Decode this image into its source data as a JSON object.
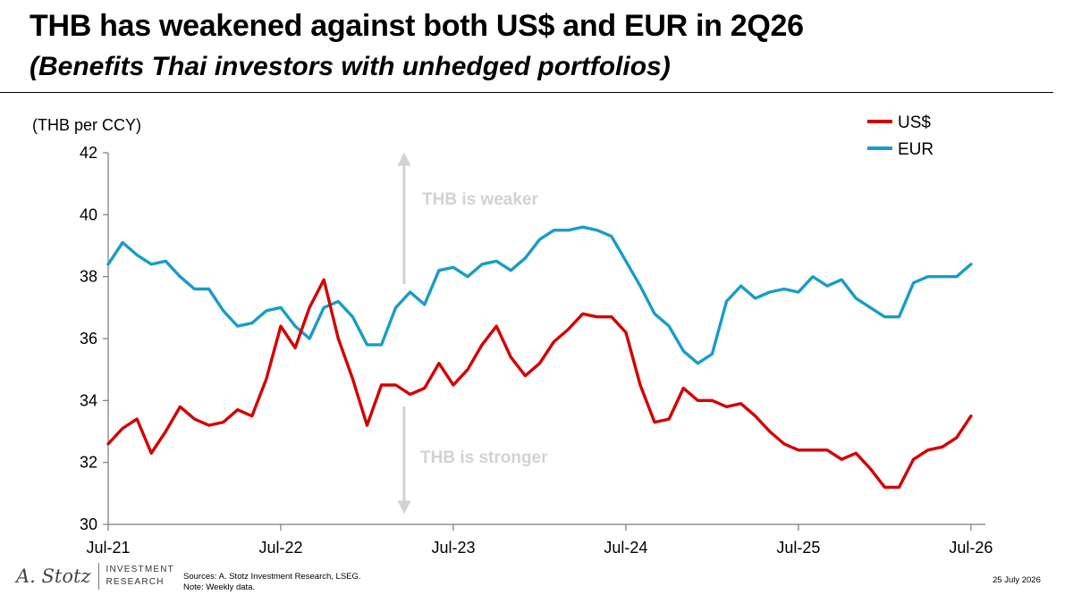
{
  "header": {
    "title": "THB has weakened against both US$ and EUR in 2Q26",
    "subtitle": "(Benefits Thai investors with unhedged portfolios)"
  },
  "chart_data": {
    "type": "line",
    "ylabel": "(THB per CCY)",
    "ylim": [
      30,
      42
    ],
    "yticks": [
      30,
      32,
      34,
      36,
      38,
      40,
      42
    ],
    "xlim": [
      "2021-07",
      "2026-08"
    ],
    "xticks": [
      {
        "date": "2021-07",
        "label": "Jul-21"
      },
      {
        "date": "2022-07",
        "label": "Jul-22"
      },
      {
        "date": "2023-07",
        "label": "Jul-23"
      },
      {
        "date": "2024-07",
        "label": "Jul-24"
      },
      {
        "date": "2025-07",
        "label": "Jul-25"
      },
      {
        "date": "2026-07",
        "label": "Jul-26"
      }
    ],
    "grid": false,
    "legend": "top-right",
    "annotations": {
      "up": "THB is weaker",
      "down": "THB is stronger"
    },
    "series": [
      {
        "name": "US$",
        "color": "#d40000",
        "points": [
          [
            "2021-07",
            32.6
          ],
          [
            "2021-08",
            33.1
          ],
          [
            "2021-09",
            33.4
          ],
          [
            "2021-10",
            32.3
          ],
          [
            "2021-11",
            33.0
          ],
          [
            "2021-12",
            33.8
          ],
          [
            "2022-01",
            33.4
          ],
          [
            "2022-02",
            33.2
          ],
          [
            "2022-03",
            33.3
          ],
          [
            "2022-04",
            33.7
          ],
          [
            "2022-05",
            33.5
          ],
          [
            "2022-06",
            34.7
          ],
          [
            "2022-07",
            36.4
          ],
          [
            "2022-08",
            35.7
          ],
          [
            "2022-09",
            37.0
          ],
          [
            "2022-10",
            37.9
          ],
          [
            "2022-11",
            36.0
          ],
          [
            "2022-12",
            34.7
          ],
          [
            "2023-01",
            33.2
          ],
          [
            "2023-02",
            34.5
          ],
          [
            "2023-03",
            34.5
          ],
          [
            "2023-04",
            34.2
          ],
          [
            "2023-05",
            34.4
          ],
          [
            "2023-06",
            35.2
          ],
          [
            "2023-07",
            34.5
          ],
          [
            "2023-08",
            35.0
          ],
          [
            "2023-09",
            35.8
          ],
          [
            "2023-10",
            36.4
          ],
          [
            "2023-11",
            35.4
          ],
          [
            "2023-12",
            34.8
          ],
          [
            "2024-01",
            35.2
          ],
          [
            "2024-02",
            35.9
          ],
          [
            "2024-03",
            36.3
          ],
          [
            "2024-04",
            36.8
          ],
          [
            "2024-05",
            36.7
          ],
          [
            "2024-06",
            36.7
          ],
          [
            "2024-07",
            36.2
          ],
          [
            "2024-08",
            34.5
          ],
          [
            "2024-09",
            33.3
          ],
          [
            "2024-10",
            33.4
          ],
          [
            "2024-11",
            34.4
          ],
          [
            "2024-12",
            34.0
          ],
          [
            "2025-01",
            34.0
          ],
          [
            "2025-02",
            33.8
          ],
          [
            "2025-03",
            33.9
          ],
          [
            "2025-04",
            33.5
          ],
          [
            "2025-05",
            33.0
          ],
          [
            "2025-06",
            32.6
          ],
          [
            "2025-07",
            32.4
          ],
          [
            "2025-08",
            32.4
          ],
          [
            "2025-09",
            32.4
          ],
          [
            "2025-10",
            32.1
          ],
          [
            "2025-11",
            32.3
          ],
          [
            "2025-12",
            31.8
          ],
          [
            "2026-01",
            31.2
          ],
          [
            "2026-02",
            31.2
          ],
          [
            "2026-03",
            32.1
          ],
          [
            "2026-04",
            32.4
          ],
          [
            "2026-05",
            32.5
          ],
          [
            "2026-06",
            32.8
          ],
          [
            "2026-07",
            33.5
          ]
        ]
      },
      {
        "name": "EUR",
        "color": "#1a9cc7",
        "points": [
          [
            "2021-07",
            38.4
          ],
          [
            "2021-08",
            39.1
          ],
          [
            "2021-09",
            38.7
          ],
          [
            "2021-10",
            38.4
          ],
          [
            "2021-11",
            38.5
          ],
          [
            "2021-12",
            38.0
          ],
          [
            "2022-01",
            37.6
          ],
          [
            "2022-02",
            37.6
          ],
          [
            "2022-03",
            36.9
          ],
          [
            "2022-04",
            36.4
          ],
          [
            "2022-05",
            36.5
          ],
          [
            "2022-06",
            36.9
          ],
          [
            "2022-07",
            37.0
          ],
          [
            "2022-08",
            36.4
          ],
          [
            "2022-09",
            36.0
          ],
          [
            "2022-10",
            37.0
          ],
          [
            "2022-11",
            37.2
          ],
          [
            "2022-12",
            36.7
          ],
          [
            "2023-01",
            35.8
          ],
          [
            "2023-02",
            35.8
          ],
          [
            "2023-03",
            37.0
          ],
          [
            "2023-04",
            37.5
          ],
          [
            "2023-05",
            37.1
          ],
          [
            "2023-06",
            38.2
          ],
          [
            "2023-07",
            38.3
          ],
          [
            "2023-08",
            38.0
          ],
          [
            "2023-09",
            38.4
          ],
          [
            "2023-10",
            38.5
          ],
          [
            "2023-11",
            38.2
          ],
          [
            "2023-12",
            38.6
          ],
          [
            "2024-01",
            39.2
          ],
          [
            "2024-02",
            39.5
          ],
          [
            "2024-03",
            39.5
          ],
          [
            "2024-04",
            39.6
          ],
          [
            "2024-05",
            39.5
          ],
          [
            "2024-06",
            39.3
          ],
          [
            "2024-07",
            38.5
          ],
          [
            "2024-08",
            37.7
          ],
          [
            "2024-09",
            36.8
          ],
          [
            "2024-10",
            36.4
          ],
          [
            "2024-11",
            35.6
          ],
          [
            "2024-12",
            35.2
          ],
          [
            "2025-01",
            35.5
          ],
          [
            "2025-02",
            37.2
          ],
          [
            "2025-03",
            37.7
          ],
          [
            "2025-04",
            37.3
          ],
          [
            "2025-05",
            37.5
          ],
          [
            "2025-06",
            37.6
          ],
          [
            "2025-07",
            37.5
          ],
          [
            "2025-08",
            38.0
          ],
          [
            "2025-09",
            37.7
          ],
          [
            "2025-10",
            37.9
          ],
          [
            "2025-11",
            37.3
          ],
          [
            "2025-12",
            37.0
          ],
          [
            "2026-01",
            36.7
          ],
          [
            "2026-02",
            36.7
          ],
          [
            "2026-03",
            37.8
          ],
          [
            "2026-04",
            38.0
          ],
          [
            "2026-05",
            38.0
          ],
          [
            "2026-06",
            38.0
          ],
          [
            "2026-07",
            38.4
          ]
        ]
      }
    ]
  },
  "footer": {
    "logo_script": "A. Stotz",
    "logo_line1": "INVESTMENT",
    "logo_line2": "RESEARCH",
    "sources": "Sources: A. Stotz Investment Research, LSEG.",
    "note": "Note: Weekly data.",
    "date": "25 July 2026"
  }
}
